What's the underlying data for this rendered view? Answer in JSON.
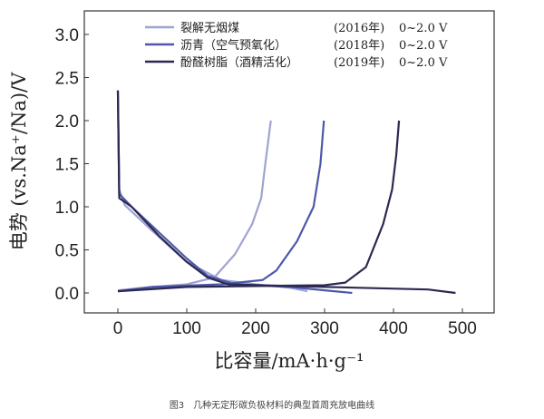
{
  "chart_data": {
    "type": "line",
    "title": "",
    "xlabel": "比容量/mA·h·g⁻¹",
    "ylabel": "电势 (vs.Na⁺/Na)/V",
    "xlim": [
      -50,
      550
    ],
    "ylim": [
      -0.3,
      3.3
    ],
    "xticks": [
      "0",
      "100",
      "200",
      "300",
      "400",
      "500"
    ],
    "xtick_values": [
      0,
      100,
      200,
      300,
      400,
      500
    ],
    "yticks": [
      "0.0",
      "0.5",
      "1.0",
      "1.5",
      "2.0",
      "2.5",
      "3.0"
    ],
    "ytick_values": [
      0,
      0.5,
      1.0,
      1.5,
      2.0,
      2.5,
      3.0
    ],
    "legend_placement": "top",
    "series": [
      {
        "name": "裂解无烟煤",
        "year": "(2016年)",
        "range": "0~2.0 V",
        "color": "#9ea3d3",
        "discharge": [
          [
            0,
            2.35
          ],
          [
            2,
            1.2
          ],
          [
            10,
            1.02
          ],
          [
            50,
            0.72
          ],
          [
            100,
            0.36
          ],
          [
            150,
            0.15
          ],
          [
            200,
            0.1
          ],
          [
            250,
            0.06
          ],
          [
            275,
            0.02
          ]
        ],
        "charge": [
          [
            0,
            0.03
          ],
          [
            50,
            0.07
          ],
          [
            100,
            0.1
          ],
          [
            140,
            0.18
          ],
          [
            170,
            0.45
          ],
          [
            195,
            0.8
          ],
          [
            208,
            1.1
          ],
          [
            214,
            1.5
          ],
          [
            222,
            2.0
          ]
        ]
      },
      {
        "name": "沥青（空气预氧化）",
        "year": "(2018年)",
        "range": "0~2.0 V",
        "color": "#4d58aa",
        "discharge": [
          [
            0,
            2.35
          ],
          [
            2,
            1.15
          ],
          [
            20,
            1.0
          ],
          [
            60,
            0.7
          ],
          [
            100,
            0.4
          ],
          [
            130,
            0.2
          ],
          [
            170,
            0.1
          ],
          [
            250,
            0.07
          ],
          [
            300,
            0.03
          ],
          [
            340,
            0.0
          ]
        ],
        "charge": [
          [
            0,
            0.02
          ],
          [
            50,
            0.07
          ],
          [
            150,
            0.1
          ],
          [
            210,
            0.15
          ],
          [
            230,
            0.26
          ],
          [
            260,
            0.6
          ],
          [
            284,
            1.0
          ],
          [
            294,
            1.5
          ],
          [
            299,
            2.0
          ]
        ]
      },
      {
        "name": "酚醛树脂（酒精活化）",
        "year": "(2019年)",
        "range": "0~2.0 V",
        "color": "#2b2951",
        "discharge": [
          [
            0,
            2.35
          ],
          [
            2,
            1.1
          ],
          [
            20,
            1.0
          ],
          [
            60,
            0.66
          ],
          [
            100,
            0.36
          ],
          [
            130,
            0.18
          ],
          [
            160,
            0.1
          ],
          [
            250,
            0.08
          ],
          [
            350,
            0.06
          ],
          [
            450,
            0.04
          ],
          [
            490,
            0.0
          ]
        ],
        "charge": [
          [
            0,
            0.02
          ],
          [
            100,
            0.07
          ],
          [
            200,
            0.08
          ],
          [
            300,
            0.09
          ],
          [
            330,
            0.12
          ],
          [
            360,
            0.3
          ],
          [
            385,
            0.8
          ],
          [
            398,
            1.2
          ],
          [
            404,
            1.6
          ],
          [
            408,
            2.0
          ]
        ]
      }
    ]
  },
  "caption": "图3　几种无定形碳负极材料的典型首周充放电曲线"
}
